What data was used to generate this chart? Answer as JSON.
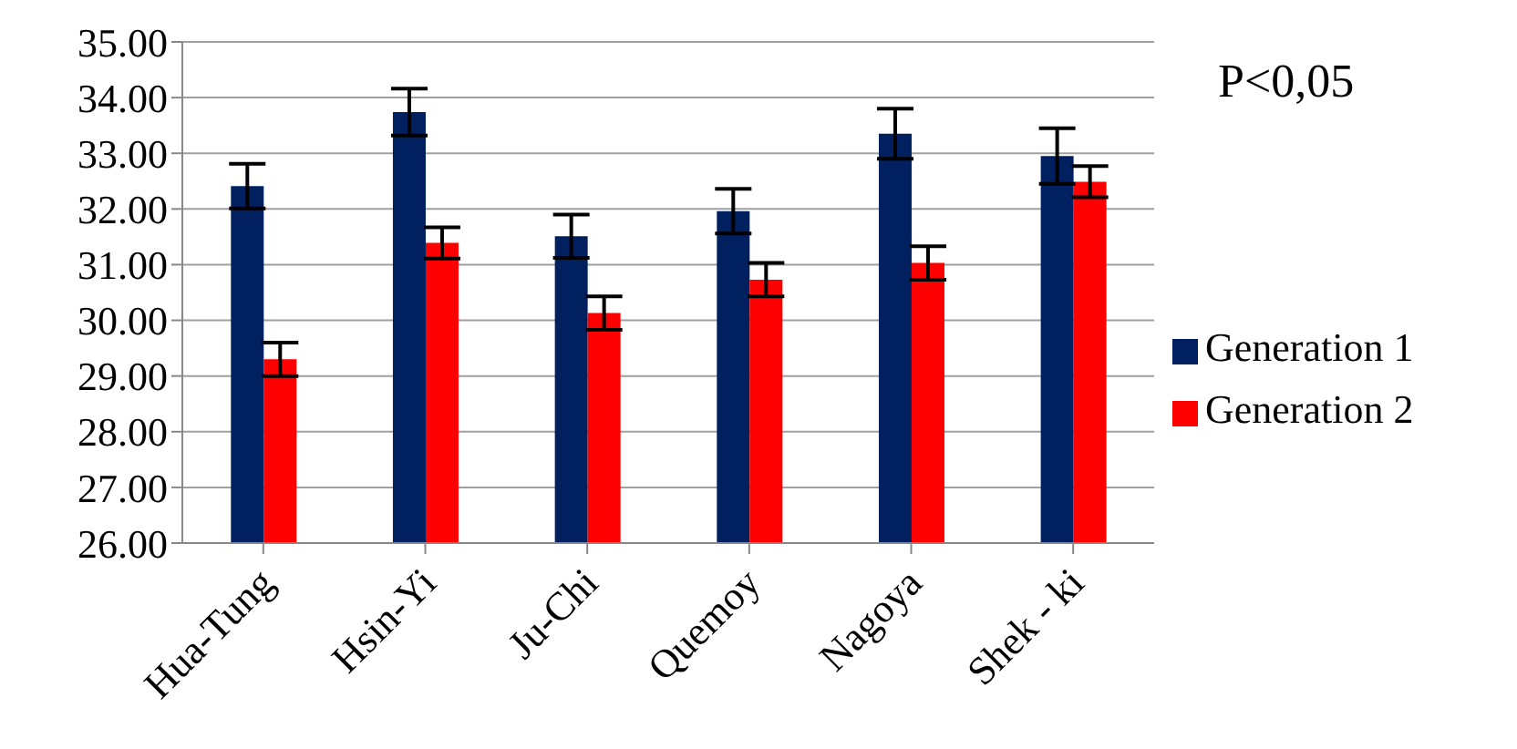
{
  "chart_data": {
    "type": "bar",
    "categories": [
      "Hua-Tung",
      "Hsin-Yi",
      "Ju-Chi",
      "Quemoy",
      "Nagoya",
      "Shek - ki"
    ],
    "series": [
      {
        "name": "Generation 1",
        "color": "#002060",
        "values": [
          32.41,
          33.74,
          31.51,
          31.96,
          33.35,
          32.95
        ],
        "errors": [
          0.4,
          0.42,
          0.39,
          0.4,
          0.45,
          0.5
        ]
      },
      {
        "name": "Generation 2",
        "color": "#ff0000",
        "values": [
          29.3,
          31.39,
          30.13,
          30.73,
          31.03,
          32.49
        ],
        "errors": [
          0.3,
          0.28,
          0.3,
          0.3,
          0.3,
          0.28
        ]
      }
    ],
    "ylim": [
      26,
      35
    ],
    "yticks": [
      {
        "value": 26,
        "label": "26.00"
      },
      {
        "value": 27,
        "label": "27.00"
      },
      {
        "value": 28,
        "label": "28.00"
      },
      {
        "value": 29,
        "label": "29.00"
      },
      {
        "value": 30,
        "label": "30.00"
      },
      {
        "value": 31,
        "label": "31.00"
      },
      {
        "value": 32,
        "label": "32.00"
      },
      {
        "value": 33,
        "label": "33.00"
      },
      {
        "value": 34,
        "label": "34.00"
      },
      {
        "value": 35,
        "label": "35.00"
      }
    ],
    "grid": "y",
    "legend": "right",
    "annotations": [
      "P<0,05"
    ]
  }
}
